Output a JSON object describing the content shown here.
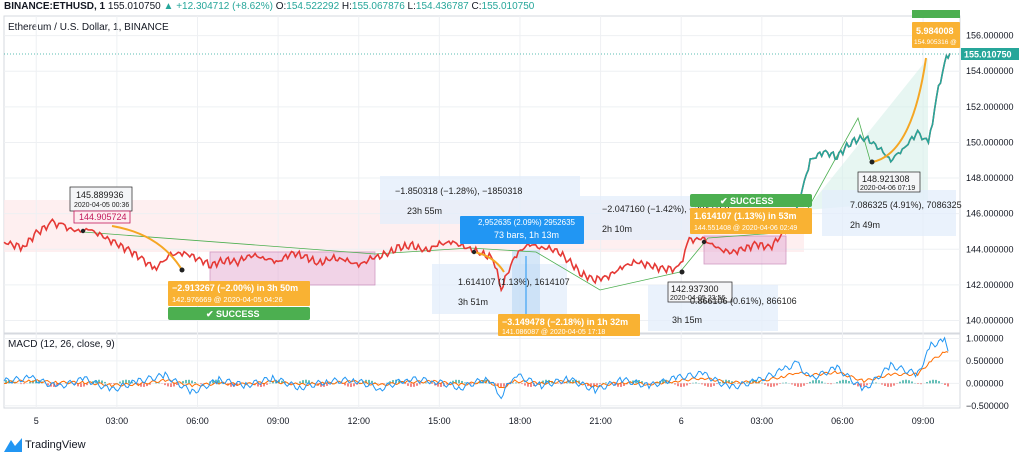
{
  "header": {
    "symbol": "BINANCE:ETHUSD, 1",
    "last": "155.010750",
    "change": "▲ +12.304712 (+8.62%)",
    "o_label": "O:",
    "o": "154.522292",
    "h_label": "H:",
    "h": "155.067876",
    "l_label": "L:",
    "l": "154.436787",
    "c_label": "C:",
    "c": "155.010750"
  },
  "chart_title": "Ethereum / U.S. Dollar, 1, BINANCE",
  "macd_title": "MACD (12, 26, close, 9)",
  "brand": "TradingView",
  "price_badge": "155.010750",
  "annotations": {
    "high1_price": "145.889936",
    "high1_time": "2020-04-05 00:36",
    "high1_flag": "144.905724",
    "trade1_result": "−2.913267 (−2.00%) in 3h 50m",
    "trade1_entry": "142.976669 @ 2020-04-05  04:26",
    "success1": "✔ SUCCESS",
    "range1_text": "−1.850318 (−1.28%), −1850318",
    "range1_time": "23h 55m",
    "bars_text": "73 bars, 1h 13m",
    "bars_prefix": "2,952635 (2.09%) 2952635",
    "range2_text": "1.614107 (1.13%), 1614107",
    "range2_time": "3h 51m",
    "trade2_result": "−3.149478 (−2.18%) in 1h 32m",
    "trade2_entry": "141.086087 @ 2020-04-05  17:18",
    "range3_text": "−2.047160 (−1.42%), −2047160",
    "range3_time": "2h 10m",
    "low2_price": "142.937300",
    "low2_time": "2020-04-05 23:56",
    "range4_text": "0.866106 (0.61%), 866106",
    "range4_time": "3h 15m",
    "success2": "✔ SUCCESS",
    "trade3_result": "1.614107 (1.13%) in 53m",
    "trade3_entry": "144.551408 @ 2020-04-06  02:49",
    "range5_text": "7.086325 (4.91%), 7086325",
    "range5_time": "2h 49m",
    "low3_price": "148.921308",
    "low3_time": "2020-04-06 07:19",
    "trade4_result": "5.984008",
    "trade4_entry": "154.905316 @"
  },
  "chart_data": [
    {
      "type": "line",
      "title": "Ethereum / U.S. Dollar, 1, BINANCE",
      "x_ticks": [
        "5",
        "03:00",
        "06:00",
        "09:00",
        "12:00",
        "15:00",
        "18:00",
        "21:00",
        "6",
        "03:00",
        "06:00",
        "09:00"
      ],
      "y_ticks": [
        "140.000000",
        "142.000000",
        "144.000000",
        "146.000000",
        "148.000000",
        "150.000000",
        "152.000000",
        "154.000000",
        "156.000000"
      ],
      "ylim": [
        139.3,
        157.1
      ],
      "hours_range": [
        -1.2,
        34.3
      ],
      "series": [
        {
          "hours": [
            -1.2,
            -0.5,
            0.0,
            0.6,
            1.0,
            1.5,
            2.0,
            2.5,
            3.0,
            3.5,
            4.0,
            4.4,
            5.0,
            5.5,
            6.0,
            6.5,
            7.0,
            7.5,
            8.0,
            8.5,
            9.0,
            9.5,
            10.0,
            10.5,
            11.0,
            11.5,
            12.0,
            12.5,
            13.0,
            13.5,
            14.0,
            14.5,
            15.0,
            15.5,
            16.0,
            16.5,
            17.0,
            17.3,
            17.8,
            18.3,
            18.8,
            19.3,
            19.8,
            20.3,
            20.8,
            21.3,
            21.8,
            22.3,
            22.8,
            23.3,
            23.9,
            24.3,
            24.8,
            25.3,
            25.8,
            26.3,
            26.8,
            27.3,
            27.8,
            28.3,
            28.8,
            29.3,
            29.8,
            30.3,
            30.8,
            31.3,
            31.8,
            32.3,
            32.8,
            33.2,
            33.5,
            33.8,
            34.0
          ],
          "values": [
            144.4,
            144.1,
            144.9,
            145.5,
            145.3,
            145.0,
            145.1,
            144.7,
            144.3,
            143.9,
            143.4,
            142.9,
            143.7,
            143.8,
            143.5,
            143.1,
            143.4,
            143.3,
            143.7,
            143.5,
            143.3,
            143.8,
            143.6,
            143.2,
            143.5,
            143.4,
            143.1,
            143.5,
            143.7,
            144.1,
            144.2,
            143.9,
            144.3,
            144.4,
            144.1,
            143.8,
            143.5,
            141.8,
            143.6,
            144.3,
            144.1,
            144.0,
            143.4,
            142.6,
            142.3,
            142.5,
            143.0,
            143.3,
            143.1,
            142.9,
            142.9,
            144.5,
            144.6,
            144.1,
            143.8,
            144.0,
            144.3,
            144.1,
            144.9,
            146.2,
            149.0,
            149.5,
            149.2,
            150.0,
            150.3,
            149.8,
            149.0,
            149.7,
            150.6,
            149.9,
            152.5,
            154.5,
            155.0
          ],
          "color": "#e53935"
        }
      ]
    },
    {
      "type": "line",
      "title": "MACD (12, 26, close, 9)",
      "y_ticks": [
        "1.000000",
        "0.500000",
        "0.000000",
        "−0.500000"
      ],
      "ylim": [
        -0.55,
        1.1
      ],
      "hours": [
        -1.2,
        -0.2,
        0.8,
        1.8,
        2.8,
        3.8,
        4.8,
        5.8,
        6.8,
        7.8,
        8.8,
        9.8,
        10.8,
        11.8,
        12.8,
        13.8,
        14.8,
        15.8,
        16.8,
        17.3,
        17.8,
        18.8,
        19.8,
        20.8,
        21.8,
        22.8,
        23.8,
        24.8,
        25.8,
        26.8,
        27.8,
        28.3,
        28.8,
        29.8,
        30.8,
        31.8,
        32.8,
        33.3,
        33.8,
        34.0
      ],
      "macd": [
        0.05,
        0.12,
        -0.08,
        0.1,
        -0.15,
        0.05,
        0.18,
        -0.2,
        0.08,
        -0.05,
        0.12,
        -0.1,
        0.04,
        0.08,
        -0.12,
        0.1,
        0.05,
        -0.1,
        0.12,
        -0.28,
        0.2,
        -0.05,
        0.1,
        -0.15,
        0.08,
        -0.06,
        0.12,
        0.22,
        -0.1,
        0.05,
        0.3,
        0.45,
        0.1,
        0.35,
        -0.15,
        0.4,
        0.2,
        0.85,
        0.95,
        0.7
      ],
      "signal": [
        0.02,
        0.06,
        0.02,
        0.02,
        -0.04,
        -0.02,
        0.07,
        -0.05,
        0.0,
        -0.02,
        0.04,
        -0.03,
        0.0,
        0.04,
        -0.04,
        0.03,
        0.04,
        -0.03,
        0.05,
        -0.12,
        0.05,
        0.0,
        0.05,
        -0.06,
        0.02,
        -0.02,
        0.05,
        0.12,
        0.02,
        0.03,
        0.15,
        0.25,
        0.18,
        0.25,
        0.05,
        0.2,
        0.2,
        0.5,
        0.7,
        0.65
      ],
      "macd_color": "#2196f3",
      "signal_color": "#ff6d00"
    }
  ]
}
